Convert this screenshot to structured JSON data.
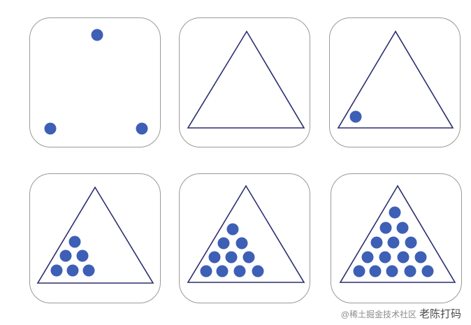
{
  "diagram": {
    "dot_color": "#3d5fb5",
    "line_color": "#2b2f6e",
    "border_color": "#9a9a9a",
    "steps": [
      {
        "name": "three-points",
        "shape": "points",
        "dot_count": 3
      },
      {
        "name": "triangle-outline",
        "shape": "triangle",
        "dot_count": 0
      },
      {
        "name": "triangle-one-dot",
        "shape": "triangle",
        "dot_count": 1
      },
      {
        "name": "triangle-6-dots",
        "shape": "triangle",
        "dot_count": 6
      },
      {
        "name": "triangle-10-dots",
        "shape": "triangle",
        "dot_count": 10
      },
      {
        "name": "triangle-15-dots",
        "shape": "triangle",
        "dot_count": 15
      }
    ]
  },
  "watermark": {
    "primary": "@稀土掘金技术社区",
    "secondary": "老陈打码"
  }
}
